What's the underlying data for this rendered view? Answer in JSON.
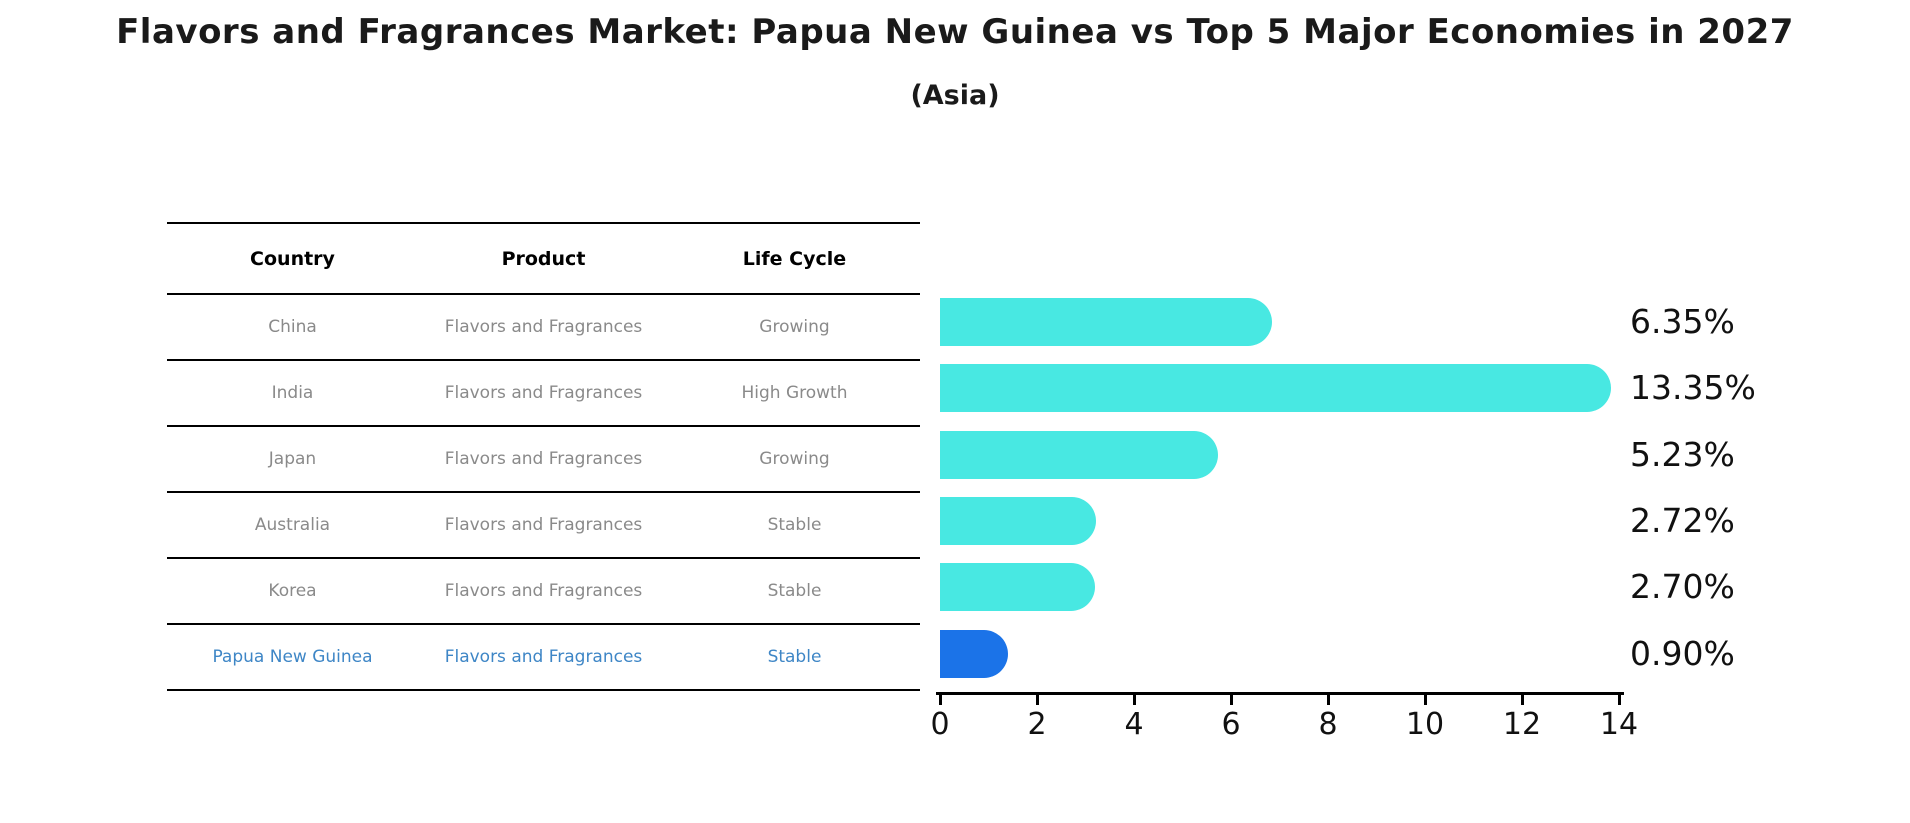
{
  "title": "Flavors and Fragrances Market: Papua New Guinea vs Top 5 Major Economies in 2027",
  "subtitle": "(Asia)",
  "table": {
    "headers": [
      "Country",
      "Product",
      "Life Cycle"
    ],
    "rows": [
      {
        "country": "China",
        "product": "Flavors and Fragrances",
        "life_cycle": "Growing",
        "highlight": false
      },
      {
        "country": "India",
        "product": "Flavors and Fragrances",
        "life_cycle": "High Growth",
        "highlight": false
      },
      {
        "country": "Japan",
        "product": "Flavors and Fragrances",
        "life_cycle": "Growing",
        "highlight": false
      },
      {
        "country": "Australia",
        "product": "Flavors and Fragrances",
        "life_cycle": "Stable",
        "highlight": false
      },
      {
        "country": "Korea",
        "product": "Flavors and Fragrances",
        "life_cycle": "Stable",
        "highlight": false
      },
      {
        "country": "Papua New Guinea",
        "product": "Flavors and Fragrances",
        "life_cycle": "Stable",
        "highlight": true
      }
    ]
  },
  "chart_data": {
    "type": "bar",
    "orientation": "horizontal",
    "title": "Flavors and Fragrances Market: Papua New Guinea vs Top 5 Major Economies in 2027 (Asia)",
    "categories": [
      "China",
      "India",
      "Japan",
      "Australia",
      "Korea",
      "Papua New Guinea"
    ],
    "values": [
      6.35,
      13.35,
      5.23,
      2.72,
      2.7,
      0.9
    ],
    "value_labels": [
      "6.35%",
      "13.35%",
      "5.23%",
      "2.72%",
      "2.70%",
      "0.90%"
    ],
    "xlim": [
      0,
      14
    ],
    "x_ticks": [
      0,
      2,
      4,
      6,
      8,
      10,
      12,
      14
    ],
    "x_tick_labels": [
      "0",
      "2",
      "4",
      "6",
      "8",
      "10",
      "12",
      "14"
    ],
    "grid": false,
    "legend": false,
    "bar_color": "#48e8e2",
    "highlight_color": "#1b73e8",
    "highlight_index": 5
  },
  "colors": {
    "highlight_text": "#3e86c6",
    "body_text": "#8a8a8a",
    "header_text": "#000000",
    "label_text": "#111111"
  }
}
